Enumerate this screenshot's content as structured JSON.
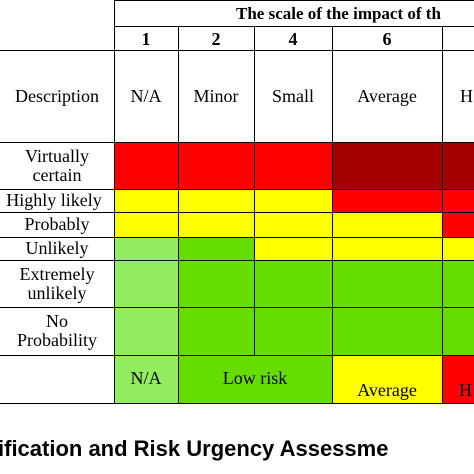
{
  "header": {
    "impact_title": "The scale of the impact of th",
    "scale_numbers": [
      "1",
      "2",
      "4",
      "6"
    ],
    "description_label": "Description",
    "impact_descriptions": [
      "N/A",
      "Minor",
      "Small",
      "Average",
      "H"
    ]
  },
  "rows": [
    {
      "label": "Virtually\ncertain"
    },
    {
      "label": "Highly likely"
    },
    {
      "label": "Probably"
    },
    {
      "label": "Unlikely"
    },
    {
      "label": "Extremely\nunlikely"
    },
    {
      "label": "No\nProbability"
    }
  ],
  "legend": {
    "na": "N/A",
    "low": "Low risk",
    "average": "Average",
    "high": "H"
  },
  "caption": "ification and Risk Urgency Assessme",
  "colors": {
    "red": "#ff0000",
    "dark_red": "#a50000",
    "yellow": "#ffff00",
    "green": "#66dd00",
    "light_green": "#92ee60"
  }
}
